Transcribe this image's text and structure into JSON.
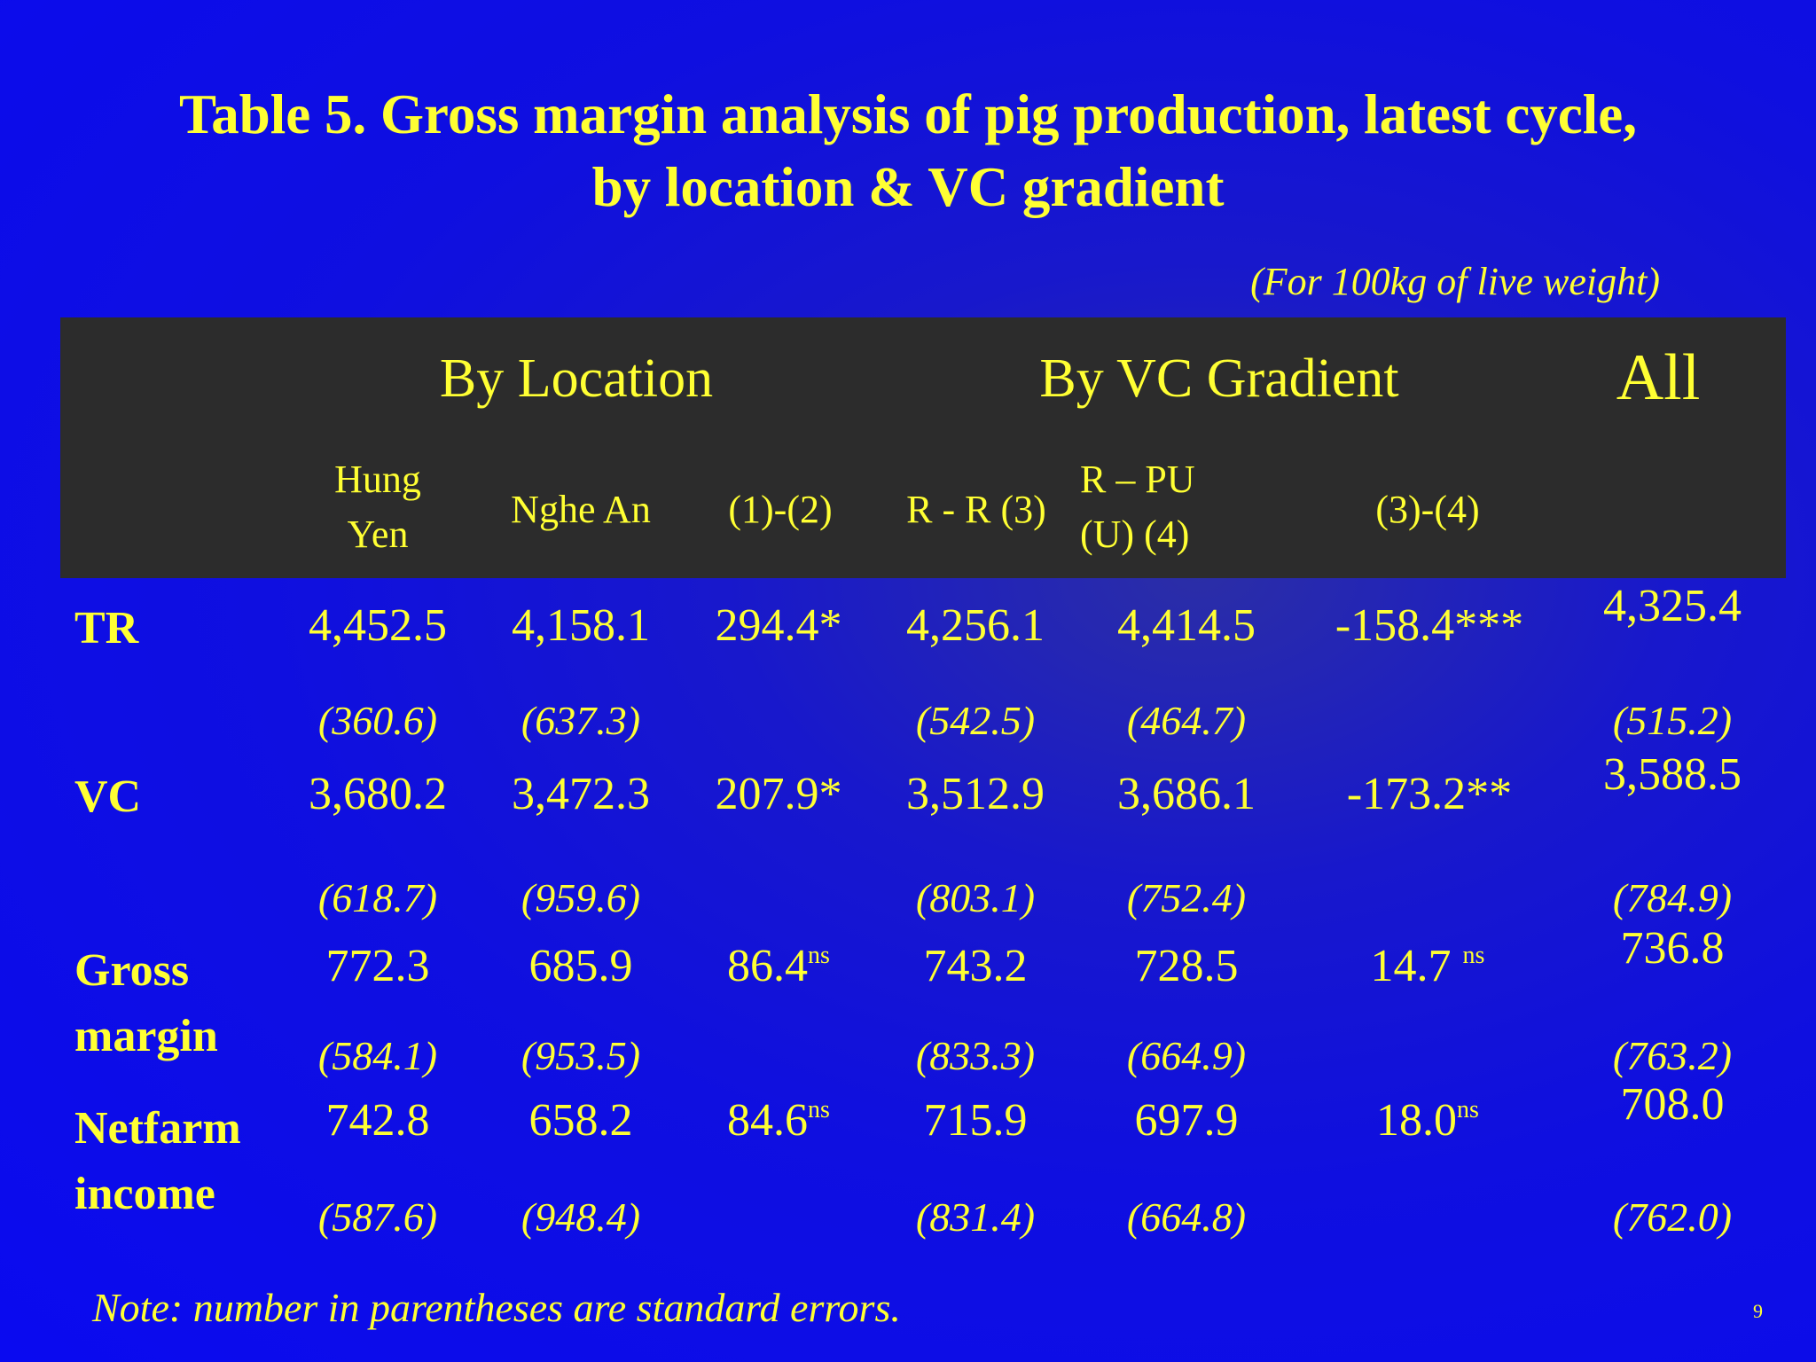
{
  "title": {
    "line1": "Table 5.  Gross margin analysis of pig production, latest cycle,",
    "line2": "by location & VC gradient"
  },
  "unit_note": "(For 100kg of live weight)",
  "table": {
    "group_headers": {
      "location": "By Location",
      "vc_gradient": "By VC Gradient",
      "all": "All"
    },
    "columns": {
      "hung_yen_1": "Hung",
      "hung_yen_2": "Yen",
      "nghe_an": "Nghe An",
      "diff_12": "(1)-(2)",
      "rr3": "R - R (3)",
      "rpu_1": "R – PU",
      "rpu_2": "(U) (4)",
      "diff_34": "(3)-(4)"
    },
    "rows": {
      "tr": {
        "label": "TR",
        "hung_yen": "4,452.5",
        "nghe_an": "4,158.1",
        "diff_12": "294.4*",
        "rr3": "4,256.1",
        "rpu4": "4,414.5",
        "diff_34": "-158.4***",
        "all": "4,325.4",
        "se_hung_yen": "(360.6)",
        "se_nghe_an": "(637.3)",
        "se_rr3": "(542.5)",
        "se_rpu4": "(464.7)",
        "se_all": "(515.2)"
      },
      "vc": {
        "label": "VC",
        "hung_yen": "3,680.2",
        "nghe_an": "3,472.3",
        "diff_12": "207.9*",
        "rr3": "3,512.9",
        "rpu4": "3,686.1",
        "diff_34": "-173.2**",
        "all": "3,588.5",
        "se_hung_yen": "(618.7)",
        "se_nghe_an": "(959.6)",
        "se_rr3": "(803.1)",
        "se_rpu4": "(752.4)",
        "se_all": "(784.9)"
      },
      "gross_margin": {
        "label_1": "Gross",
        "label_2": "margin",
        "hung_yen": "772.3",
        "nghe_an": "685.9",
        "diff_12": "86.4",
        "diff_12_sup": "ns",
        "rr3": "743.2",
        "rpu4": "728.5",
        "diff_34": "14.7",
        "diff_34_sup": "ns",
        "all": "736.8",
        "se_hung_yen": "(584.1)",
        "se_nghe_an": "(953.5)",
        "se_rr3": "(833.3)",
        "se_rpu4": "(664.9)",
        "se_all": "(763.2)"
      },
      "netfarm_income": {
        "label_1": "Netfarm",
        "label_2": "income",
        "hung_yen": "742.8",
        "nghe_an": "658.2",
        "diff_12": "84.6",
        "diff_12_sup": "ns",
        "rr3": "715.9",
        "rpu4": "697.9",
        "diff_34": "18.0",
        "diff_34_sup": "ns",
        "all": "708.0",
        "se_hung_yen": "(587.6)",
        "se_nghe_an": "(948.4)",
        "se_rr3": "(831.4)",
        "se_rpu4": "(664.8)",
        "se_all": "(762.0)"
      }
    }
  },
  "footnote": "Note: number in parentheses are standard errors.",
  "page_number": "9"
}
